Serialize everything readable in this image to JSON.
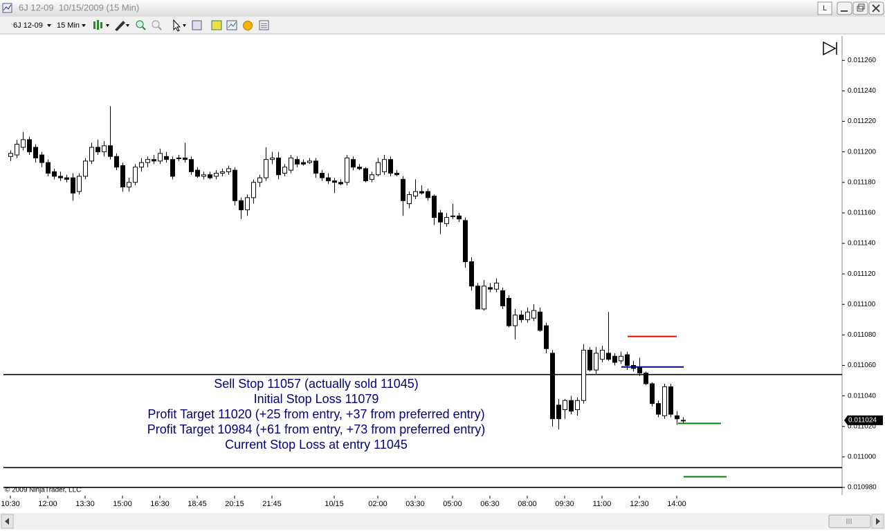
{
  "window": {
    "title": "6J 12-09  10/15/2009 (15 Min)",
    "layout_button": "L"
  },
  "toolbar": {
    "instrument": "6J 12-09",
    "interval": "15 Min"
  },
  "chart_data": {
    "type": "candlestick",
    "categories": [
      "10:30",
      null,
      null,
      null,
      null,
      null,
      "12:00",
      null,
      null,
      null,
      null,
      null,
      "13:30",
      null,
      null,
      null,
      null,
      null,
      "15:00",
      null,
      null,
      null,
      null,
      null,
      "16:30",
      null,
      null,
      null,
      null,
      null,
      "18:45",
      null,
      null,
      null,
      null,
      null,
      "20:15",
      null,
      null,
      null,
      null,
      null,
      "21:45",
      null,
      null,
      null,
      null,
      null,
      null,
      null,
      null,
      null,
      "10/15",
      null,
      null,
      null,
      null,
      null,
      null,
      "02:00",
      null,
      null,
      null,
      null,
      null,
      "03:30",
      null,
      null,
      null,
      null,
      null,
      "05:00",
      null,
      null,
      null,
      null,
      null,
      "06:30",
      null,
      null,
      null,
      null,
      null,
      "08:00",
      null,
      null,
      null,
      null,
      null,
      "09:30",
      null,
      null,
      null,
      null,
      null,
      "11:00",
      null,
      null,
      null,
      null,
      null,
      "12:30",
      null,
      null,
      null,
      null,
      null,
      "14:00",
      null
    ],
    "open": [
      0.011197,
      0.011198,
      0.011203,
      0.011208,
      0.011203,
      0.011198,
      0.011193,
      0.011187,
      0.011184,
      0.011183,
      0.011183,
      0.011174,
      0.011184,
      0.011194,
      0.011203,
      0.0112,
      0.011204,
      0.011197,
      0.011191,
      0.011177,
      0.01118,
      0.01119,
      0.011193,
      0.011195,
      0.011194,
      0.011197,
      0.011195,
      0.011196,
      0.011196,
      0.011195,
      0.011188,
      0.011184,
      0.011185,
      0.011184,
      0.011186,
      0.011187,
      0.011188,
      0.011168,
      0.011162,
      0.01117,
      0.01118,
      0.011183,
      0.011195,
      0.011196,
      0.011186,
      0.011188,
      0.011195,
      0.011193,
      0.011193,
      0.011194,
      0.011186,
      0.011183,
      0.011181,
      0.01118,
      0.01118,
      0.011195,
      0.01119,
      0.011189,
      0.011182,
      0.011185,
      0.011187,
      0.011195,
      0.011186,
      0.011182,
      0.011166,
      0.011171,
      0.011174,
      0.011174,
      0.011171,
      0.01116,
      0.011153,
      0.011158,
      0.011158,
      0.011155,
      0.011128,
      0.011112,
      0.011097,
      0.011111,
      0.01111,
      0.011109,
      0.011104,
      0.011086,
      0.011093,
      0.01109,
      0.011091,
      0.011095,
      0.011086,
      0.011068,
      0.011034,
      0.011031,
      0.011037,
      0.011031,
      0.011037,
      0.01107,
      0.011057,
      0.011064,
      0.011068,
      0.011066,
      0.011063,
      0.011067,
      0.01106,
      0.011059,
      0.011055,
      0.011048,
      0.011035,
      0.011027,
      0.011046,
      0.011027,
      0.011024
    ],
    "high": [
      0.011201,
      0.011208,
      0.011213,
      0.01121,
      0.011205,
      0.0112,
      0.011195,
      0.011189,
      0.011187,
      0.011185,
      0.011186,
      0.011186,
      0.011196,
      0.011206,
      0.011208,
      0.011207,
      0.01123,
      0.011199,
      0.011193,
      0.011183,
      0.011192,
      0.011196,
      0.011197,
      0.011198,
      0.011202,
      0.0112,
      0.011197,
      0.011198,
      0.011206,
      0.011197,
      0.01119,
      0.011187,
      0.011187,
      0.011188,
      0.011189,
      0.011191,
      0.01119,
      0.01117,
      0.011172,
      0.011182,
      0.011185,
      0.011203,
      0.0112,
      0.0112,
      0.011192,
      0.011198,
      0.011197,
      0.011195,
      0.011196,
      0.011196,
      0.011188,
      0.011186,
      0.011183,
      0.011182,
      0.011198,
      0.011197,
      0.011192,
      0.01119,
      0.011187,
      0.011196,
      0.011198,
      0.011197,
      0.011188,
      0.011184,
      0.011174,
      0.011182,
      0.011178,
      0.011176,
      0.011172,
      0.011162,
      0.01116,
      0.011166,
      0.01116,
      0.011157,
      0.011131,
      0.011114,
      0.011116,
      0.011114,
      0.011117,
      0.011111,
      0.011106,
      0.011097,
      0.011096,
      0.011098,
      0.0111,
      0.011098,
      0.011088,
      0.01107,
      0.011038,
      0.011038,
      0.01104,
      0.011039,
      0.011074,
      0.011072,
      0.011072,
      0.011073,
      0.011095,
      0.011068,
      0.011069,
      0.011069,
      0.011063,
      0.011065,
      0.011056,
      0.011049,
      0.011037,
      0.011048,
      0.011048,
      0.01103,
      0.011026
    ],
    "low": [
      0.011194,
      0.011196,
      0.011201,
      0.011198,
      0.011193,
      0.01119,
      0.011184,
      0.011182,
      0.011181,
      0.01118,
      0.011168,
      0.011172,
      0.011182,
      0.011192,
      0.011198,
      0.011197,
      0.011195,
      0.011188,
      0.011174,
      0.011174,
      0.011178,
      0.011187,
      0.01119,
      0.011192,
      0.011192,
      0.011193,
      0.011182,
      0.011194,
      0.011193,
      0.011185,
      0.011183,
      0.011182,
      0.011182,
      0.011182,
      0.011184,
      0.011185,
      0.011165,
      0.011156,
      0.011158,
      0.011166,
      0.011177,
      0.011181,
      0.011192,
      0.011182,
      0.011184,
      0.011186,
      0.01119,
      0.011191,
      0.011192,
      0.011183,
      0.011181,
      0.011179,
      0.011173,
      0.011178,
      0.011178,
      0.011188,
      0.011188,
      0.01118,
      0.01118,
      0.011184,
      0.011185,
      0.011184,
      0.011184,
      0.011158,
      0.011163,
      0.011169,
      0.011172,
      0.011168,
      0.011152,
      0.011146,
      0.011151,
      0.011156,
      0.011154,
      0.011124,
      0.011109,
      0.011097,
      0.011096,
      0.011108,
      0.011108,
      0.011097,
      0.011085,
      0.011077,
      0.011088,
      0.011088,
      0.011089,
      0.011082,
      0.011068,
      0.01102,
      0.011018,
      0.011025,
      0.011028,
      0.011027,
      0.011035,
      0.011056,
      0.011054,
      0.011062,
      0.011063,
      0.01106,
      0.011061,
      0.011057,
      0.011056,
      0.011053,
      0.011047,
      0.011033,
      0.011026,
      0.011025,
      0.011026,
      0.011021,
      0.011022
    ],
    "close": [
      0.011199,
      0.011205,
      0.011208,
      0.0112,
      0.011196,
      0.011193,
      0.011186,
      0.011184,
      0.011183,
      0.011182,
      0.011173,
      0.011184,
      0.011194,
      0.011203,
      0.0112,
      0.011204,
      0.011197,
      0.01119,
      0.011177,
      0.01118,
      0.01119,
      0.011193,
      0.011195,
      0.011194,
      0.011199,
      0.011195,
      0.011184,
      0.011196,
      0.011195,
      0.011187,
      0.011184,
      0.011185,
      0.011183,
      0.011186,
      0.011187,
      0.011189,
      0.011168,
      0.011162,
      0.01117,
      0.01118,
      0.011183,
      0.011195,
      0.011196,
      0.011185,
      0.01119,
      0.011196,
      0.011192,
      0.011192,
      0.011194,
      0.011186,
      0.011183,
      0.011181,
      0.01118,
      0.011179,
      0.011196,
      0.01119,
      0.011189,
      0.011181,
      0.011185,
      0.011193,
      0.011195,
      0.011186,
      0.011185,
      0.011168,
      0.011172,
      0.011174,
      0.011173,
      0.01117,
      0.011157,
      0.011154,
      0.011157,
      0.011158,
      0.011156,
      0.011128,
      0.011112,
      0.011097,
      0.011112,
      0.01111,
      0.011114,
      0.011099,
      0.011086,
      0.011093,
      0.01109,
      0.011095,
      0.011096,
      0.011083,
      0.011071,
      0.011025,
      0.011025,
      0.011037,
      0.01103,
      0.011037,
      0.01107,
      0.011057,
      0.011068,
      0.01107,
      0.011064,
      0.011062,
      0.011066,
      0.01106,
      0.011058,
      0.011055,
      0.011048,
      0.011035,
      0.011028,
      0.011046,
      0.011028,
      0.011025,
      0.011024
    ],
    "up_color": "#ffffff",
    "down_color": "#000000",
    "outline_color": "#000000",
    "ylim": [
      0.010975,
      0.011276
    ],
    "yticks": [
      {
        "value": 0.01126,
        "label": "0.011260"
      },
      {
        "value": 0.01124,
        "label": "0.011240"
      },
      {
        "value": 0.01122,
        "label": "0.011220"
      },
      {
        "value": 0.0112,
        "label": "0.011200"
      },
      {
        "value": 0.01118,
        "label": "0.011180"
      },
      {
        "value": 0.01116,
        "label": "0.011160"
      },
      {
        "value": 0.01114,
        "label": "0.011140"
      },
      {
        "value": 0.01112,
        "label": "0.011120"
      },
      {
        "value": 0.0111,
        "label": "0.011100"
      },
      {
        "value": 0.01108,
        "label": "0.011080"
      },
      {
        "value": 0.01106,
        "label": "0.011060"
      },
      {
        "value": 0.01104,
        "label": "0.011040"
      },
      {
        "value": 0.01102,
        "label": "0.011020"
      },
      {
        "value": 0.011,
        "label": "0.011000"
      },
      {
        "value": 0.01098,
        "label": "0.010980"
      }
    ],
    "last_price": {
      "value": 0.011024,
      "label": "0.011024"
    },
    "lines": [
      {
        "value": 0.011054,
        "color": "#000000"
      },
      {
        "value": 0.010993,
        "color": "#000000"
      },
      {
        "value": 0.01098,
        "color": "#000000"
      }
    ],
    "orders": [
      {
        "value": 0.011079,
        "color": "#ff0000"
      },
      {
        "value": 0.011059,
        "color": "#000080"
      },
      {
        "value": 0.011022,
        "color": "#008000"
      },
      {
        "value": 0.010987,
        "color": "#008000"
      }
    ],
    "annotations": [
      "Sell Stop 11057 (actually sold 11045)",
      "Initial Stop Loss 11079",
      "Profit Target 11020 (+25 from entry, +37 from preferred entry)",
      "Profit Target 10984 (+61 from entry, +73 from preferred entry)",
      "Current Stop Loss at entry 11045"
    ],
    "annotation_color": "#000080",
    "copyright": "© 2009 NinjaTrader, LLC"
  }
}
